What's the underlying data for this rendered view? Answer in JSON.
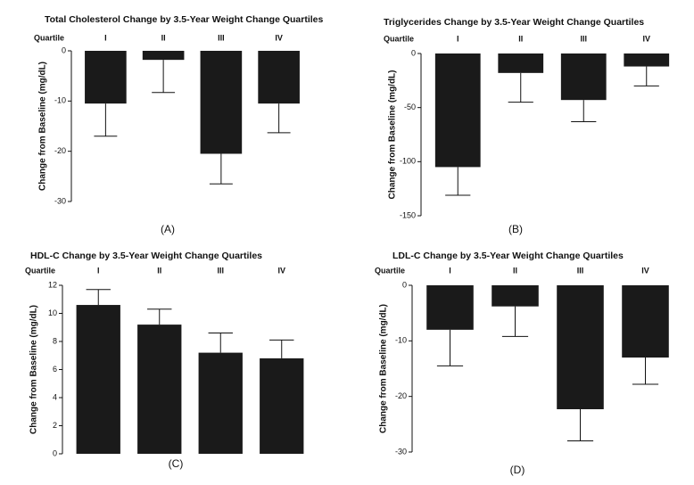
{
  "chart_data": [
    {
      "type": "bar",
      "title": "Total Cholesterol Change by 3.5-Year Weight Change Quartiles",
      "category_axis_label": "Quartile",
      "ylabel": "Change from Baseline (mg/dL)",
      "panel_label": "(A)",
      "categories": [
        "I",
        "II",
        "III",
        "IV"
      ],
      "values": [
        -10.5,
        -1.8,
        -20.5,
        -10.5
      ],
      "errors": [
        6.5,
        6.5,
        6,
        5.8
      ],
      "color": "#1a1a1a",
      "ylim": [
        -30,
        0
      ],
      "yticks": [
        0,
        -10,
        -20,
        -30
      ]
    },
    {
      "type": "bar",
      "title": "Triglycerides Change by 3.5-Year Weight Change Quartiles",
      "category_axis_label": "Quartile",
      "ylabel": "Change from Baseline (mg/dL)",
      "panel_label": "(B)",
      "categories": [
        "I",
        "II",
        "III",
        "IV"
      ],
      "values": [
        -105,
        -18,
        -43,
        -12
      ],
      "errors": [
        26,
        27,
        20,
        18
      ],
      "color": "#1a1a1a",
      "ylim": [
        -150,
        0
      ],
      "yticks": [
        0,
        -50,
        -100,
        -150
      ]
    },
    {
      "type": "bar",
      "title": "HDL-C Change by 3.5-Year Weight Change Quartiles",
      "category_axis_label": "Quartile",
      "ylabel": "Change from Baseline (mg/dL)",
      "panel_label": "(C)",
      "categories": [
        "I",
        "II",
        "III",
        "IV"
      ],
      "values": [
        10.6,
        9.2,
        7.2,
        6.8
      ],
      "errors": [
        1.1,
        1.1,
        1.4,
        1.3
      ],
      "color": "#1a1a1a",
      "ylim": [
        0,
        12
      ],
      "yticks": [
        0,
        2,
        4,
        6,
        8,
        10,
        12
      ]
    },
    {
      "type": "bar",
      "title": "LDL-C Change by 3.5-Year Weight Change Quartiles",
      "category_axis_label": "Quartile",
      "ylabel": "Change from Baseline (mg/dL)",
      "panel_label": "(D)",
      "categories": [
        "I",
        "II",
        "III",
        "IV"
      ],
      "values": [
        -8,
        -3.8,
        -22.3,
        -13
      ],
      "errors": [
        6.5,
        5.4,
        5.7,
        4.8
      ],
      "color": "#1a1a1a",
      "ylim": [
        -30,
        0
      ],
      "yticks": [
        0,
        -10,
        -20,
        -30
      ]
    }
  ]
}
